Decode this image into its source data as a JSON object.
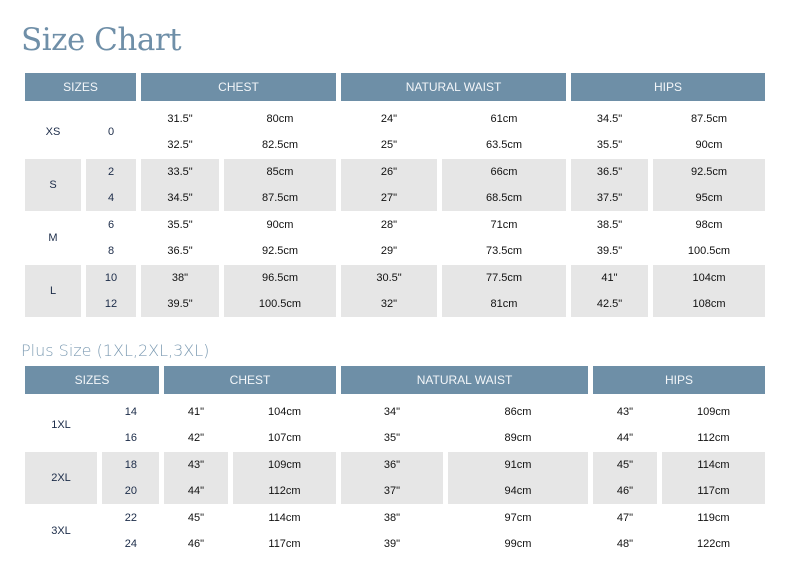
{
  "title": "Size Chart",
  "subtitle": "Plus Size (1XL,2XL,3XL)",
  "colors": {
    "header_bg": "#6e8fa7",
    "row_alt_bg": "#e6e6e6",
    "title": "#6f8fa8"
  },
  "table1": {
    "headers": [
      "SIZES",
      "CHEST",
      "NATURAL WAIST",
      "HIPS"
    ],
    "rows": [
      {
        "size": "XS",
        "nums": [
          "0"
        ],
        "chest_in": [
          "31.5\"",
          "32.5\""
        ],
        "chest_cm": [
          "80cm",
          "82.5cm"
        ],
        "waist_in": [
          "24\"",
          "25\""
        ],
        "waist_cm": [
          "61cm",
          "63.5cm"
        ],
        "hips_in": [
          "34.5\"",
          "35.5\""
        ],
        "hips_cm": [
          "87.5cm",
          "90cm"
        ]
      },
      {
        "size": "S",
        "nums": [
          "2",
          "4"
        ],
        "chest_in": [
          "33.5\"",
          "34.5\""
        ],
        "chest_cm": [
          "85cm",
          "87.5cm"
        ],
        "waist_in": [
          "26\"",
          "27\""
        ],
        "waist_cm": [
          "66cm",
          "68.5cm"
        ],
        "hips_in": [
          "36.5\"",
          "37.5\""
        ],
        "hips_cm": [
          "92.5cm",
          "95cm"
        ]
      },
      {
        "size": "M",
        "nums": [
          "6",
          "8"
        ],
        "chest_in": [
          "35.5\"",
          "36.5\""
        ],
        "chest_cm": [
          "90cm",
          "92.5cm"
        ],
        "waist_in": [
          "28\"",
          "29\""
        ],
        "waist_cm": [
          "71cm",
          "73.5cm"
        ],
        "hips_in": [
          "38.5\"",
          "39.5\""
        ],
        "hips_cm": [
          "98cm",
          "100.5cm"
        ]
      },
      {
        "size": "L",
        "nums": [
          "10",
          "12"
        ],
        "chest_in": [
          "38\"",
          "39.5\""
        ],
        "chest_cm": [
          "96.5cm",
          "100.5cm"
        ],
        "waist_in": [
          "30.5\"",
          "32\""
        ],
        "waist_cm": [
          "77.5cm",
          "81cm"
        ],
        "hips_in": [
          "41\"",
          "42.5\""
        ],
        "hips_cm": [
          "104cm",
          "108cm"
        ]
      }
    ]
  },
  "table2": {
    "headers": [
      "SIZES",
      "CHEST",
      "NATURAL WAIST",
      "HIPS"
    ],
    "rows": [
      {
        "size": "1XL",
        "nums": [
          "14",
          "16"
        ],
        "chest_in": [
          "41\"",
          "42\""
        ],
        "chest_cm": [
          "104cm",
          "107cm"
        ],
        "waist_in": [
          "34\"",
          "35\""
        ],
        "waist_cm": [
          "86cm",
          "89cm"
        ],
        "hips_in": [
          "43\"",
          "44\""
        ],
        "hips_cm": [
          "109cm",
          "112cm"
        ]
      },
      {
        "size": "2XL",
        "nums": [
          "18",
          "20"
        ],
        "chest_in": [
          "43\"",
          "44\""
        ],
        "chest_cm": [
          "109cm",
          "112cm"
        ],
        "waist_in": [
          "36\"",
          "37\""
        ],
        "waist_cm": [
          "91cm",
          "94cm"
        ],
        "hips_in": [
          "45\"",
          "46\""
        ],
        "hips_cm": [
          "114cm",
          "117cm"
        ]
      },
      {
        "size": "3XL",
        "nums": [
          "22",
          "24"
        ],
        "chest_in": [
          "45\"",
          "46\""
        ],
        "chest_cm": [
          "114cm",
          "117cm"
        ],
        "waist_in": [
          "38\"",
          "39\""
        ],
        "waist_cm": [
          "97cm",
          "99cm"
        ],
        "hips_in": [
          "47\"",
          "48\""
        ],
        "hips_cm": [
          "119cm",
          "122cm"
        ]
      }
    ]
  }
}
